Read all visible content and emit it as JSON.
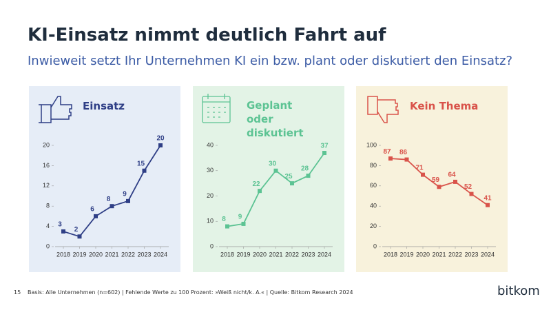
{
  "header": {
    "title": "KI-Einsatz nimmt deutlich Fahrt auf",
    "subtitle": "Inwieweit setzt Ihr Unternehmen KI ein bzw. plant oder diskutiert den Einsatz?"
  },
  "chart_data": [
    {
      "type": "line",
      "title": "Einsatz",
      "x": [
        2018,
        2019,
        2020,
        2021,
        2022,
        2023,
        2024
      ],
      "values": [
        3,
        2,
        6,
        8,
        9,
        15,
        20
      ],
      "color": "#2f3f86",
      "background": "#e6edf7",
      "xlim": [
        2018,
        2024
      ],
      "xticks": [
        2018,
        2019,
        2020,
        2021,
        2022,
        2023,
        2024
      ],
      "ylim": [
        0,
        20
      ],
      "yticks": [
        0,
        4,
        8,
        12,
        16,
        20
      ],
      "grid": false
    },
    {
      "type": "line",
      "title": "Geplant oder diskutiert",
      "x": [
        2018,
        2019,
        2020,
        2021,
        2022,
        2023,
        2024
      ],
      "values": [
        8,
        9,
        22,
        30,
        25,
        28,
        37
      ],
      "color": "#5cc393",
      "background": "#e3f3e6",
      "xlim": [
        2018,
        2024
      ],
      "xticks": [
        2018,
        2019,
        2020,
        2021,
        2022,
        2023,
        2024
      ],
      "ylim": [
        0,
        40
      ],
      "yticks": [
        0,
        10,
        20,
        30,
        40
      ],
      "grid": false
    },
    {
      "type": "line",
      "title": "Kein Thema",
      "x": [
        2018,
        2019,
        2020,
        2021,
        2022,
        2023,
        2024
      ],
      "values": [
        87,
        86,
        71,
        59,
        64,
        52,
        41
      ],
      "color": "#d9534a",
      "background": "#f8f2dc",
      "xlim": [
        2018,
        2024
      ],
      "xticks": [
        2018,
        2019,
        2020,
        2021,
        2022,
        2023,
        2024
      ],
      "ylim": [
        0,
        100
      ],
      "yticks": [
        0,
        20,
        40,
        60,
        80,
        100
      ],
      "grid": false
    }
  ],
  "footer": {
    "page": "15",
    "source": "Basis: Alle Unternehmen (n=602) | Fehlende Werte zu 100 Prozent: »Weiß nicht/k. A.« | Quelle: Bitkom Research 2024",
    "logo": "bitkom"
  }
}
